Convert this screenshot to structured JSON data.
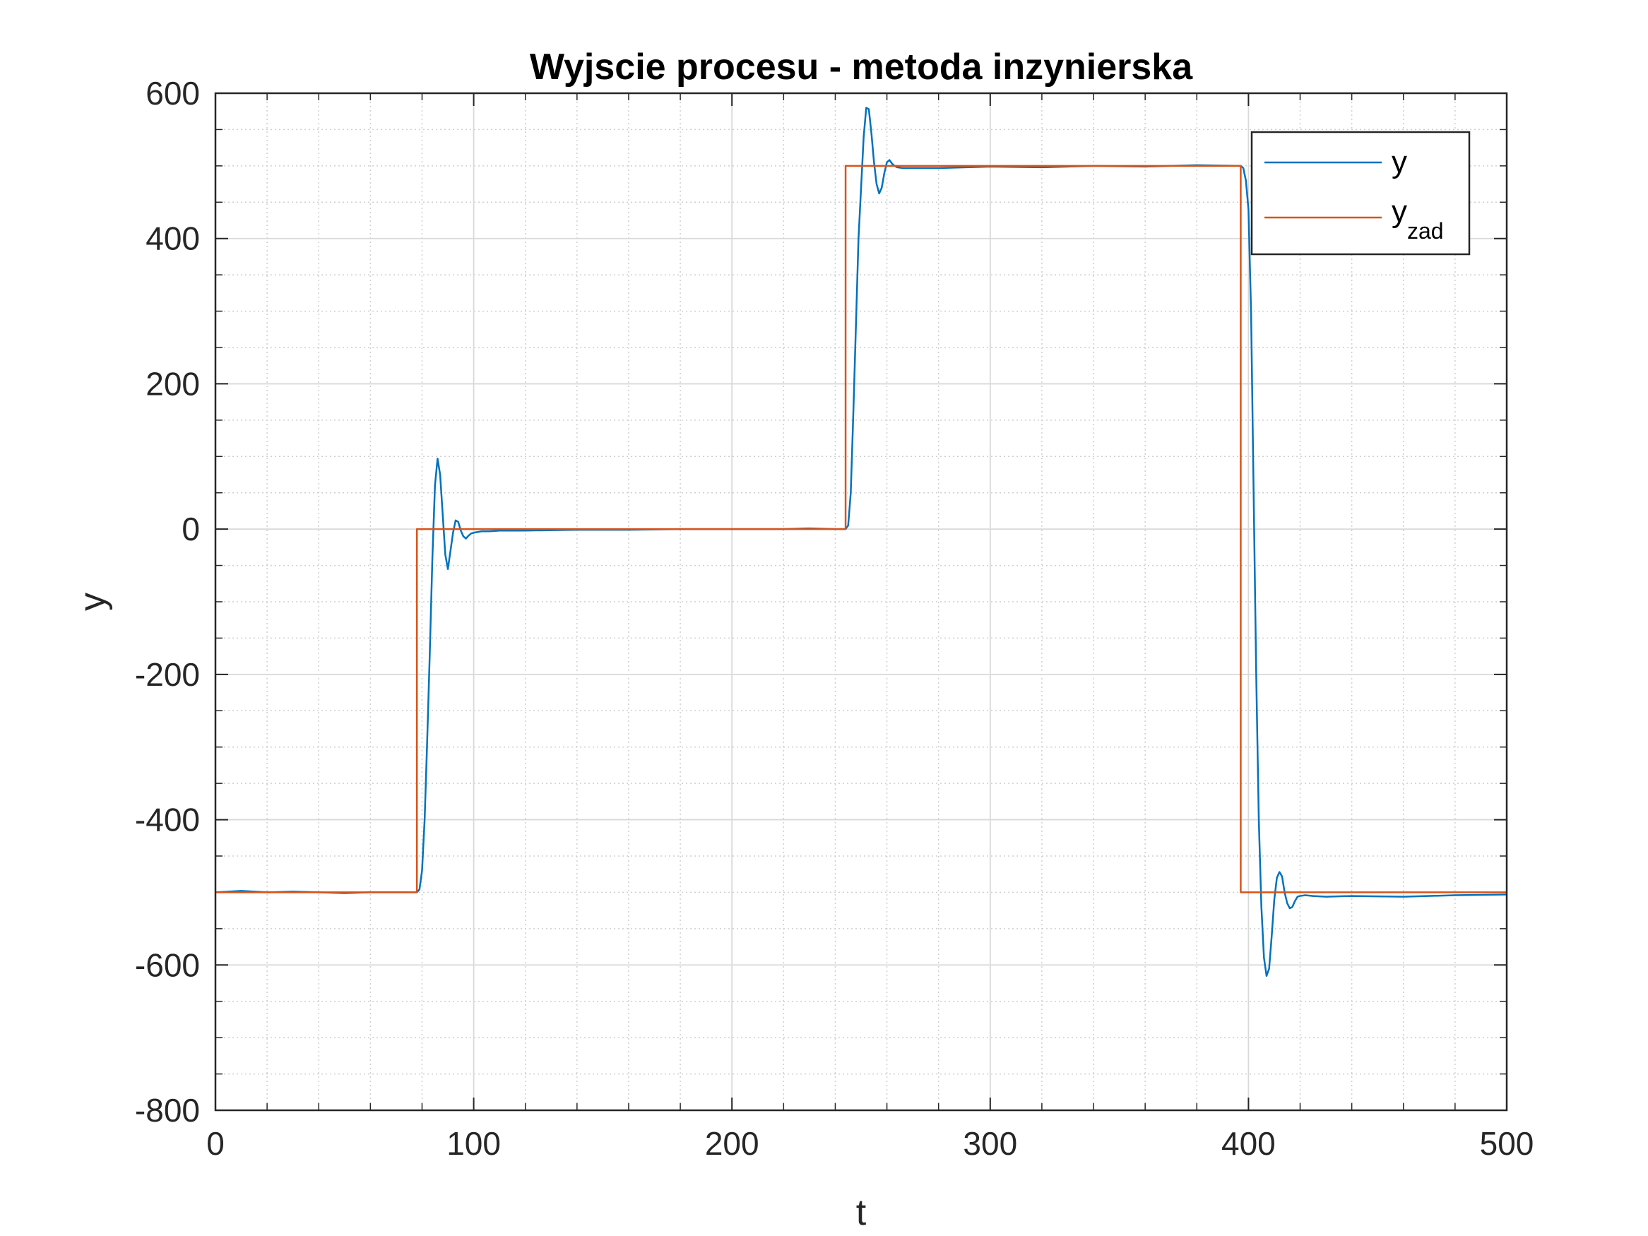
{
  "chart_data": {
    "type": "line",
    "title": "Wyjscie procesu - metoda inzynierska",
    "xlabel": "t",
    "ylabel": "y",
    "xlim": [
      0,
      500
    ],
    "ylim": [
      -800,
      600
    ],
    "xticks": [
      0,
      100,
      200,
      300,
      400,
      500
    ],
    "xtick_labels": [
      "0",
      "100",
      "200",
      "300",
      "400",
      "500"
    ],
    "yticks": [
      -800,
      -600,
      -400,
      -200,
      0,
      200,
      400,
      600
    ],
    "ytick_labels": [
      "-800",
      "-600",
      "-400",
      "-200",
      "0",
      "200",
      "400",
      "600"
    ],
    "grid": true,
    "minor_grid": true,
    "legend_position": "top-right",
    "series": [
      {
        "name": "y",
        "color": "#0072BD",
        "x": [
          0,
          10,
          20,
          30,
          40,
          50,
          60,
          70,
          78,
          79,
          80,
          81,
          82,
          83,
          84,
          85,
          86,
          87,
          88,
          89,
          90,
          91,
          92,
          93,
          94,
          95,
          96,
          97,
          98,
          99,
          100,
          103,
          106,
          110,
          120,
          140,
          160,
          180,
          200,
          220,
          230,
          240,
          244,
          245,
          246,
          247,
          248,
          249,
          250,
          251,
          252,
          253,
          254,
          255,
          256,
          257,
          258,
          259,
          260,
          261,
          262,
          263,
          264,
          266,
          270,
          280,
          300,
          320,
          340,
          360,
          380,
          397,
          398,
          399,
          400,
          401,
          402,
          403,
          404,
          405,
          406,
          407,
          408,
          409,
          410,
          411,
          412,
          413,
          414,
          415,
          416,
          417,
          418,
          419,
          420,
          422,
          425,
          430,
          440,
          460,
          480,
          500
        ],
        "y": [
          -500,
          -498,
          -500,
          -499,
          -500,
          -501,
          -500,
          -500,
          -500,
          -496,
          -470,
          -400,
          -290,
          -170,
          -40,
          60,
          97,
          75,
          20,
          -35,
          -55,
          -30,
          -5,
          12,
          10,
          -2,
          -10,
          -13,
          -9,
          -6,
          -5,
          -3,
          -3,
          -2,
          -2,
          -1,
          -1,
          0,
          0,
          0,
          1,
          0,
          0,
          5,
          50,
          160,
          280,
          400,
          470,
          540,
          580,
          578,
          545,
          505,
          475,
          462,
          470,
          490,
          505,
          508,
          503,
          500,
          498,
          497,
          497,
          497,
          499,
          498,
          500,
          499,
          501,
          500,
          497,
          480,
          440,
          300,
          50,
          -200,
          -400,
          -520,
          -590,
          -615,
          -605,
          -560,
          -510,
          -480,
          -472,
          -478,
          -500,
          -515,
          -522,
          -520,
          -512,
          -506,
          -505,
          -504,
          -505,
          -506,
          -505,
          -506,
          -504,
          -503
        ]
      },
      {
        "name": "y_zad",
        "color": "#D95319",
        "x": [
          0,
          78,
          78,
          244,
          244,
          397,
          397,
          500
        ],
        "y": [
          -500,
          -500,
          0,
          0,
          500,
          500,
          -500,
          -500
        ]
      }
    ],
    "legend": {
      "entries": [
        {
          "main": "y",
          "sub": ""
        },
        {
          "main": "y",
          "sub": "zad"
        }
      ]
    }
  }
}
